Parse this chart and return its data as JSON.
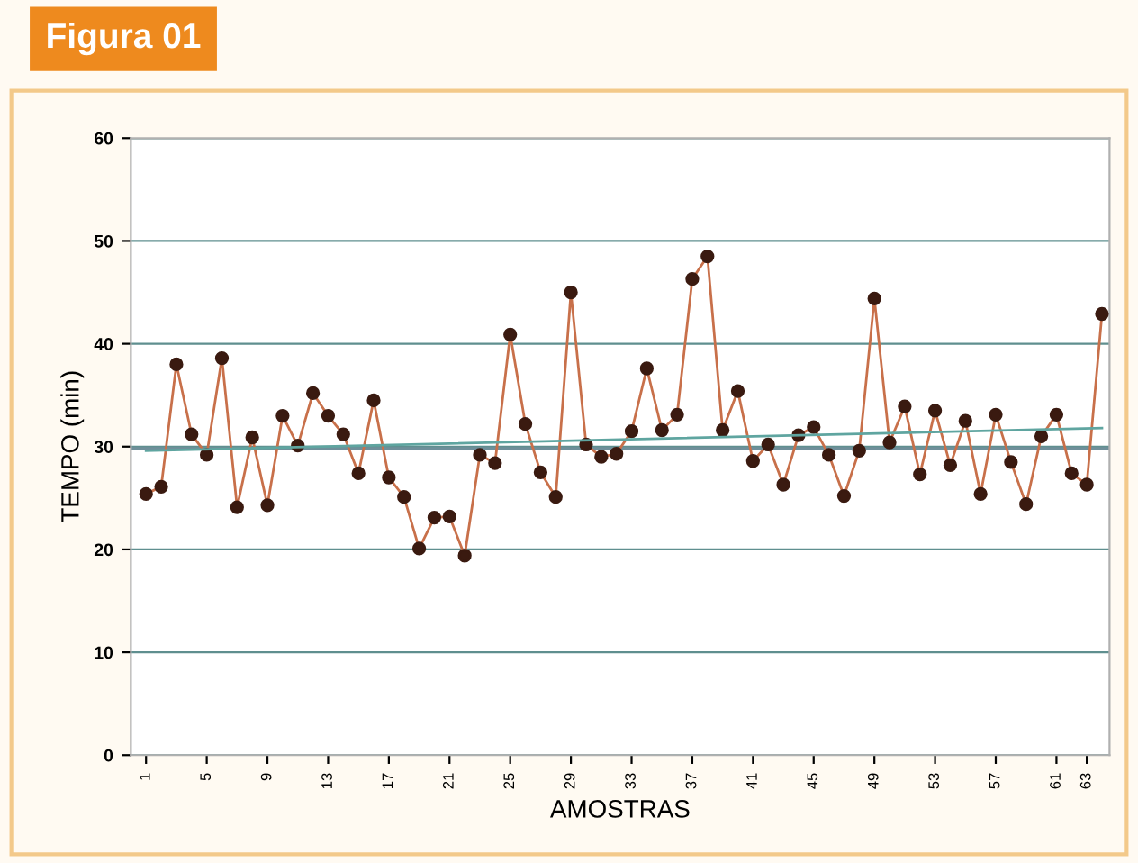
{
  "chart_data": {
    "type": "line",
    "title": "Figura 01",
    "xlabel": "AMOSTRAS",
    "ylabel": "TEMPO (min)",
    "xlim": [
      0,
      64.5
    ],
    "ylim": [
      0,
      60
    ],
    "xticks": [
      1,
      5,
      9,
      13,
      17,
      21,
      25,
      29,
      33,
      37,
      41,
      45,
      49,
      53,
      57,
      61,
      63
    ],
    "yticks": [
      0,
      10,
      20,
      30,
      40,
      50,
      60
    ],
    "grid": "y",
    "marker": "circle",
    "line_style": "solid",
    "ref_lines": [
      {
        "axis": "y",
        "value": 29.8,
        "label": null,
        "color": "#6f8f9a"
      }
    ],
    "series": [
      {
        "color": "#c8704a",
        "x": [
          1,
          2,
          3,
          4,
          5,
          6,
          7,
          8,
          9,
          10,
          11,
          12,
          13,
          14,
          15,
          16,
          17,
          18,
          19,
          20,
          21,
          22,
          23,
          24,
          25,
          26,
          27,
          28,
          29,
          30,
          31,
          32,
          33,
          34,
          35,
          36,
          37,
          38,
          39,
          40,
          41,
          42,
          43,
          44,
          45,
          46,
          47,
          48,
          49,
          50,
          51,
          52,
          53,
          54,
          55,
          56,
          57,
          58,
          59,
          60,
          61,
          62,
          63,
          64
        ],
        "values": [
          25.4,
          26.1,
          38,
          31.2,
          29.2,
          38.6,
          24.1,
          30.9,
          24.3,
          33,
          30.1,
          35.2,
          33,
          31.2,
          27.4,
          34.5,
          27,
          25.1,
          20.1,
          23.1,
          23.2,
          19.4,
          29.2,
          28.4,
          40.9,
          32.2,
          27.5,
          25.1,
          45,
          30.2,
          29,
          29.3,
          31.5,
          37.6,
          31.6,
          33.1,
          46.3,
          48.5,
          31.6,
          35.4,
          28.6,
          30.2,
          26.3,
          31.1,
          31.9,
          29.2,
          25.2,
          29.6,
          44.4,
          30.4,
          33.9,
          27.3,
          33.5,
          28.2,
          32.5,
          25.4,
          33.1,
          28.5,
          24.4,
          31,
          33.1,
          27.4,
          26.3,
          42.9
        ]
      },
      {
        "marker": "none",
        "color": "#5fa5a0",
        "x": [
          1,
          64
        ],
        "values": [
          29.6,
          31.8
        ]
      }
    ]
  }
}
